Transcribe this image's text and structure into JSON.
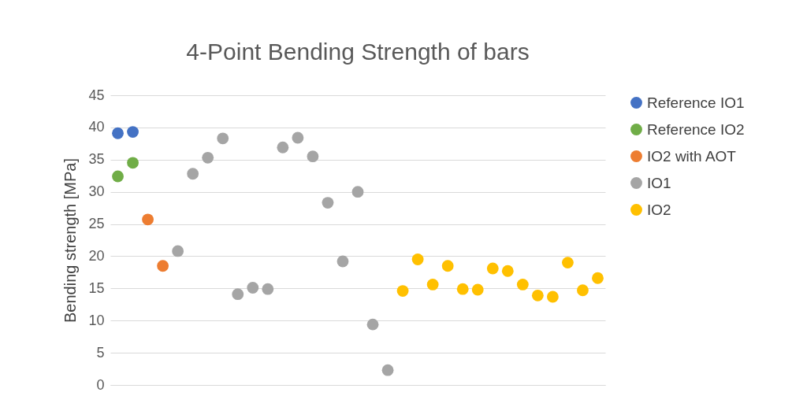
{
  "chart_data": {
    "type": "scatter",
    "title": "4-Point Bending Strength of bars",
    "ylabel": "Bending strength [MPa]",
    "categories": [
      null,
      null,
      null,
      null,
      null,
      null,
      null,
      null,
      null,
      null,
      null,
      null,
      null,
      null,
      null,
      null,
      null,
      null,
      null,
      null,
      null,
      null,
      null,
      null,
      null,
      null,
      null,
      null,
      null,
      null,
      null,
      null,
      null
    ],
    "ylim": [
      0,
      45
    ],
    "yticks": [
      0,
      5,
      10,
      15,
      20,
      25,
      30,
      35,
      40,
      45
    ],
    "grid": "y",
    "legend": "right",
    "marker": "circle",
    "series": [
      {
        "name": "Reference IO1",
        "color": "#4472c4",
        "values": [
          39.1,
          39.3,
          null,
          null,
          null,
          null,
          null,
          null,
          null,
          null,
          null,
          null,
          null,
          null,
          null,
          null,
          null,
          null,
          null,
          null,
          null,
          null,
          null,
          null,
          null,
          null,
          null,
          null,
          null,
          null,
          null,
          null,
          null
        ]
      },
      {
        "name": "Reference IO2",
        "color": "#70ad47",
        "values": [
          32.4,
          34.5,
          null,
          null,
          null,
          null,
          null,
          null,
          null,
          null,
          null,
          null,
          null,
          null,
          null,
          null,
          null,
          null,
          null,
          null,
          null,
          null,
          null,
          null,
          null,
          null,
          null,
          null,
          null,
          null,
          null,
          null,
          null
        ]
      },
      {
        "name": "IO2 with AOT",
        "color": "#ed7d31",
        "values": [
          null,
          null,
          25.7,
          18.5,
          null,
          null,
          null,
          null,
          null,
          null,
          null,
          null,
          null,
          null,
          null,
          null,
          null,
          null,
          null,
          null,
          null,
          null,
          null,
          null,
          null,
          null,
          null,
          null,
          null,
          null,
          null,
          null,
          null
        ]
      },
      {
        "name": "IO1",
        "color": "#a5a5a5",
        "values": [
          null,
          null,
          null,
          null,
          20.8,
          32.8,
          35.3,
          38.3,
          14.1,
          15.1,
          14.9,
          36.9,
          38.4,
          35.5,
          28.3,
          19.2,
          30.0,
          9.4,
          2.3,
          null,
          null,
          null,
          null,
          null,
          null,
          null,
          null,
          null,
          null,
          null,
          null,
          null,
          null
        ]
      },
      {
        "name": "IO2",
        "color": "#ffc000",
        "values": [
          null,
          null,
          null,
          null,
          null,
          null,
          null,
          null,
          null,
          null,
          null,
          null,
          null,
          null,
          null,
          null,
          null,
          null,
          null,
          14.6,
          19.5,
          15.6,
          18.5,
          14.9,
          14.8,
          18.1,
          17.7,
          15.6,
          13.9,
          13.7,
          19.0,
          14.7,
          16.6
        ]
      }
    ]
  }
}
